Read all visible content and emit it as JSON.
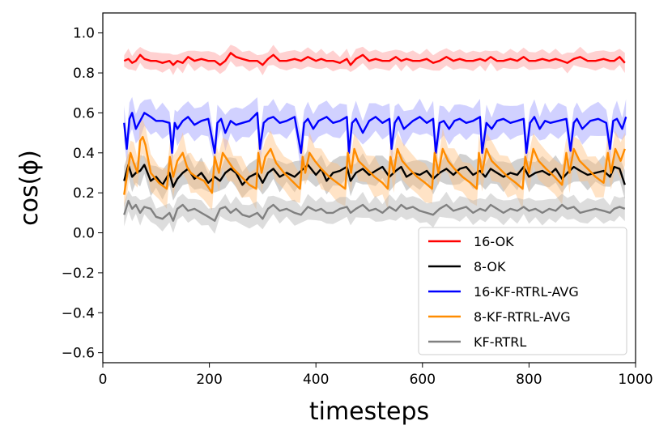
{
  "chart_data": {
    "type": "line",
    "xlabel": "timesteps",
    "ylabel": "cos(ϕ)",
    "xlim": [
      0,
      1000
    ],
    "ylim": [
      -0.65,
      1.1
    ],
    "x_ticks": [
      0,
      200,
      400,
      600,
      800,
      1000
    ],
    "y_ticks": [
      -0.6,
      -0.4,
      -0.2,
      0.0,
      0.2,
      0.4,
      0.6,
      0.8,
      1.0
    ],
    "x_tick_labels": [
      "0",
      "200",
      "400",
      "600",
      "800",
      "1000"
    ],
    "y_tick_labels": [
      "−0.6",
      "−0.4",
      "−0.2",
      "0.0",
      "0.2",
      "0.4",
      "0.6",
      "0.8",
      "1.0"
    ],
    "legend_position": "lower-right",
    "grid": false,
    "series": [
      {
        "name": "16-OK",
        "color": "#ff0000",
        "band_color": "#ff9999",
        "x": [
          40,
          48,
          55,
          62,
          70,
          78,
          90,
          100,
          112,
          125,
          132,
          140,
          150,
          160,
          172,
          185,
          198,
          210,
          220,
          230,
          240,
          250,
          262,
          275,
          290,
          300,
          310,
          320,
          332,
          345,
          360,
          372,
          385,
          400,
          410,
          420,
          432,
          445,
          458,
          465,
          475,
          488,
          500,
          512,
          525,
          538,
          550,
          560,
          570,
          582,
          595,
          608,
          620,
          632,
          645,
          658,
          670,
          682,
          695,
          708,
          718,
          728,
          740,
          752,
          765,
          778,
          790,
          800,
          812,
          825,
          838,
          850,
          862,
          872,
          884,
          896,
          910,
          925,
          940,
          952,
          960,
          970,
          980
        ],
        "y": [
          0.86,
          0.87,
          0.85,
          0.86,
          0.89,
          0.87,
          0.86,
          0.86,
          0.85,
          0.86,
          0.84,
          0.86,
          0.85,
          0.88,
          0.86,
          0.87,
          0.86,
          0.86,
          0.84,
          0.86,
          0.9,
          0.88,
          0.87,
          0.86,
          0.86,
          0.84,
          0.87,
          0.89,
          0.86,
          0.86,
          0.87,
          0.86,
          0.88,
          0.86,
          0.87,
          0.86,
          0.86,
          0.85,
          0.87,
          0.84,
          0.87,
          0.89,
          0.86,
          0.87,
          0.86,
          0.86,
          0.88,
          0.86,
          0.87,
          0.86,
          0.86,
          0.87,
          0.85,
          0.86,
          0.88,
          0.86,
          0.87,
          0.86,
          0.86,
          0.87,
          0.86,
          0.88,
          0.86,
          0.86,
          0.87,
          0.86,
          0.88,
          0.86,
          0.86,
          0.87,
          0.86,
          0.87,
          0.86,
          0.85,
          0.87,
          0.88,
          0.86,
          0.86,
          0.87,
          0.86,
          0.86,
          0.88,
          0.85
        ],
        "band": 0.04
      },
      {
        "name": "8-OK",
        "color": "#000000",
        "band_color": "#999999",
        "x": [
          40,
          48,
          55,
          62,
          70,
          78,
          90,
          100,
          112,
          125,
          132,
          140,
          150,
          160,
          172,
          185,
          198,
          210,
          220,
          230,
          240,
          250,
          262,
          275,
          290,
          300,
          310,
          320,
          332,
          345,
          360,
          372,
          385,
          400,
          410,
          420,
          432,
          445,
          458,
          465,
          475,
          488,
          500,
          512,
          525,
          538,
          550,
          560,
          570,
          582,
          595,
          608,
          620,
          632,
          645,
          658,
          670,
          682,
          695,
          708,
          718,
          728,
          740,
          752,
          765,
          778,
          790,
          800,
          812,
          825,
          838,
          850,
          862,
          872,
          884,
          896,
          910,
          925,
          940,
          952,
          960,
          970,
          980
        ],
        "y": [
          0.26,
          0.34,
          0.28,
          0.3,
          0.31,
          0.34,
          0.26,
          0.28,
          0.24,
          0.3,
          0.23,
          0.27,
          0.3,
          0.32,
          0.27,
          0.3,
          0.25,
          0.28,
          0.26,
          0.3,
          0.32,
          0.3,
          0.24,
          0.28,
          0.3,
          0.25,
          0.3,
          0.32,
          0.28,
          0.3,
          0.28,
          0.31,
          0.34,
          0.29,
          0.32,
          0.26,
          0.3,
          0.31,
          0.33,
          0.26,
          0.3,
          0.32,
          0.29,
          0.31,
          0.33,
          0.28,
          0.31,
          0.33,
          0.28,
          0.3,
          0.29,
          0.31,
          0.27,
          0.3,
          0.32,
          0.29,
          0.32,
          0.33,
          0.29,
          0.31,
          0.28,
          0.32,
          0.3,
          0.28,
          0.3,
          0.29,
          0.33,
          0.28,
          0.3,
          0.31,
          0.29,
          0.32,
          0.27,
          0.3,
          0.33,
          0.31,
          0.29,
          0.3,
          0.31,
          0.28,
          0.33,
          0.32,
          0.24
        ],
        "band": 0.06
      },
      {
        "name": "16-KF-RTRL-AVG",
        "color": "#0000ff",
        "band_color": "#9999ff",
        "x": [
          40,
          45,
          50,
          55,
          62,
          70,
          78,
          90,
          100,
          112,
          125,
          130,
          135,
          140,
          150,
          160,
          172,
          185,
          198,
          210,
          215,
          222,
          230,
          240,
          250,
          262,
          275,
          290,
          295,
          302,
          310,
          320,
          332,
          345,
          360,
          372,
          378,
          385,
          395,
          405,
          420,
          432,
          445,
          458,
          462,
          468,
          475,
          488,
          500,
          512,
          525,
          538,
          542,
          548,
          555,
          565,
          582,
          595,
          608,
          620,
          625,
          632,
          640,
          650,
          660,
          670,
          682,
          695,
          708,
          712,
          720,
          730,
          740,
          752,
          765,
          778,
          790,
          795,
          802,
          810,
          820,
          830,
          840,
          855,
          870,
          878,
          884,
          890,
          900,
          915,
          930,
          945,
          952,
          958,
          965,
          975,
          982
        ],
        "y": [
          0.55,
          0.42,
          0.57,
          0.6,
          0.52,
          0.56,
          0.6,
          0.58,
          0.56,
          0.56,
          0.55,
          0.4,
          0.55,
          0.52,
          0.56,
          0.58,
          0.54,
          0.56,
          0.57,
          0.4,
          0.55,
          0.57,
          0.5,
          0.56,
          0.54,
          0.55,
          0.56,
          0.6,
          0.42,
          0.55,
          0.57,
          0.58,
          0.55,
          0.56,
          0.58,
          0.4,
          0.55,
          0.57,
          0.52,
          0.56,
          0.58,
          0.55,
          0.56,
          0.58,
          0.4,
          0.55,
          0.57,
          0.5,
          0.56,
          0.58,
          0.55,
          0.57,
          0.42,
          0.55,
          0.58,
          0.52,
          0.56,
          0.58,
          0.55,
          0.57,
          0.4,
          0.55,
          0.56,
          0.52,
          0.56,
          0.57,
          0.55,
          0.56,
          0.58,
          0.4,
          0.55,
          0.52,
          0.56,
          0.57,
          0.55,
          0.56,
          0.57,
          0.4,
          0.55,
          0.58,
          0.52,
          0.56,
          0.55,
          0.56,
          0.57,
          0.41,
          0.55,
          0.57,
          0.52,
          0.56,
          0.57,
          0.55,
          0.42,
          0.56,
          0.57,
          0.52,
          0.58
        ],
        "band": 0.07
      },
      {
        "name": "8-KF-RTRL-AVG",
        "color": "#ff8c00",
        "band_color": "#ffc080",
        "x": [
          40,
          45,
          52,
          58,
          65,
          70,
          75,
          80,
          90,
          105,
          120,
          126,
          132,
          140,
          150,
          158,
          165,
          175,
          190,
          205,
          210,
          218,
          225,
          235,
          245,
          260,
          275,
          288,
          292,
          298,
          305,
          315,
          325,
          340,
          355,
          370,
          375,
          380,
          388,
          398,
          410,
          425,
          440,
          455,
          460,
          466,
          472,
          480,
          495,
          510,
          525,
          535,
          540,
          546,
          553,
          562,
          575,
          590,
          605,
          618,
          623,
          630,
          638,
          648,
          660,
          675,
          690,
          702,
          706,
          712,
          720,
          730,
          745,
          760,
          775,
          788,
          793,
          800,
          808,
          818,
          832,
          848,
          862,
          870,
          876,
          884,
          895,
          910,
          925,
          940,
          948,
          954,
          962,
          972,
          980
        ],
        "y": [
          0.19,
          0.28,
          0.4,
          0.35,
          0.3,
          0.46,
          0.48,
          0.44,
          0.3,
          0.25,
          0.22,
          0.38,
          0.28,
          0.36,
          0.4,
          0.33,
          0.3,
          0.28,
          0.26,
          0.2,
          0.38,
          0.3,
          0.4,
          0.36,
          0.32,
          0.28,
          0.24,
          0.22,
          0.4,
          0.3,
          0.38,
          0.42,
          0.35,
          0.3,
          0.26,
          0.22,
          0.38,
          0.3,
          0.4,
          0.36,
          0.32,
          0.28,
          0.25,
          0.22,
          0.4,
          0.3,
          0.42,
          0.36,
          0.32,
          0.28,
          0.25,
          0.22,
          0.38,
          0.3,
          0.42,
          0.36,
          0.32,
          0.28,
          0.25,
          0.22,
          0.4,
          0.3,
          0.42,
          0.36,
          0.32,
          0.28,
          0.25,
          0.22,
          0.4,
          0.3,
          0.42,
          0.36,
          0.32,
          0.28,
          0.25,
          0.22,
          0.38,
          0.3,
          0.42,
          0.36,
          0.32,
          0.28,
          0.24,
          0.4,
          0.3,
          0.42,
          0.36,
          0.32,
          0.28,
          0.25,
          0.4,
          0.3,
          0.42,
          0.36,
          0.42
        ],
        "band": 0.08
      },
      {
        "name": "KF-RTRL",
        "color": "#808080",
        "band_color": "#b3b3b3",
        "x": [
          40,
          48,
          55,
          62,
          70,
          78,
          90,
          100,
          112,
          125,
          132,
          140,
          150,
          160,
          172,
          185,
          198,
          210,
          220,
          230,
          240,
          250,
          262,
          275,
          290,
          300,
          310,
          320,
          332,
          345,
          360,
          372,
          385,
          400,
          410,
          420,
          432,
          445,
          458,
          465,
          475,
          488,
          500,
          512,
          525,
          538,
          550,
          560,
          570,
          582,
          595,
          608,
          620,
          632,
          645,
          658,
          670,
          682,
          695,
          708,
          718,
          728,
          740,
          752,
          765,
          778,
          790,
          800,
          812,
          825,
          838,
          850,
          862,
          872,
          884,
          896,
          910,
          925,
          940,
          952,
          960,
          970,
          980
        ],
        "y": [
          0.09,
          0.16,
          0.12,
          0.14,
          0.1,
          0.13,
          0.12,
          0.08,
          0.07,
          0.1,
          0.06,
          0.12,
          0.14,
          0.11,
          0.12,
          0.1,
          0.08,
          0.06,
          0.12,
          0.13,
          0.1,
          0.12,
          0.09,
          0.08,
          0.1,
          0.07,
          0.12,
          0.14,
          0.11,
          0.12,
          0.1,
          0.09,
          0.13,
          0.11,
          0.12,
          0.1,
          0.1,
          0.12,
          0.13,
          0.1,
          0.12,
          0.14,
          0.11,
          0.12,
          0.1,
          0.13,
          0.11,
          0.14,
          0.12,
          0.13,
          0.11,
          0.1,
          0.09,
          0.12,
          0.14,
          0.11,
          0.12,
          0.13,
          0.1,
          0.12,
          0.11,
          0.14,
          0.12,
          0.1,
          0.12,
          0.11,
          0.13,
          0.11,
          0.12,
          0.1,
          0.12,
          0.11,
          0.14,
          0.12,
          0.13,
          0.1,
          0.11,
          0.12,
          0.11,
          0.1,
          0.12,
          0.13,
          0.12
        ],
        "band": 0.05
      }
    ]
  }
}
